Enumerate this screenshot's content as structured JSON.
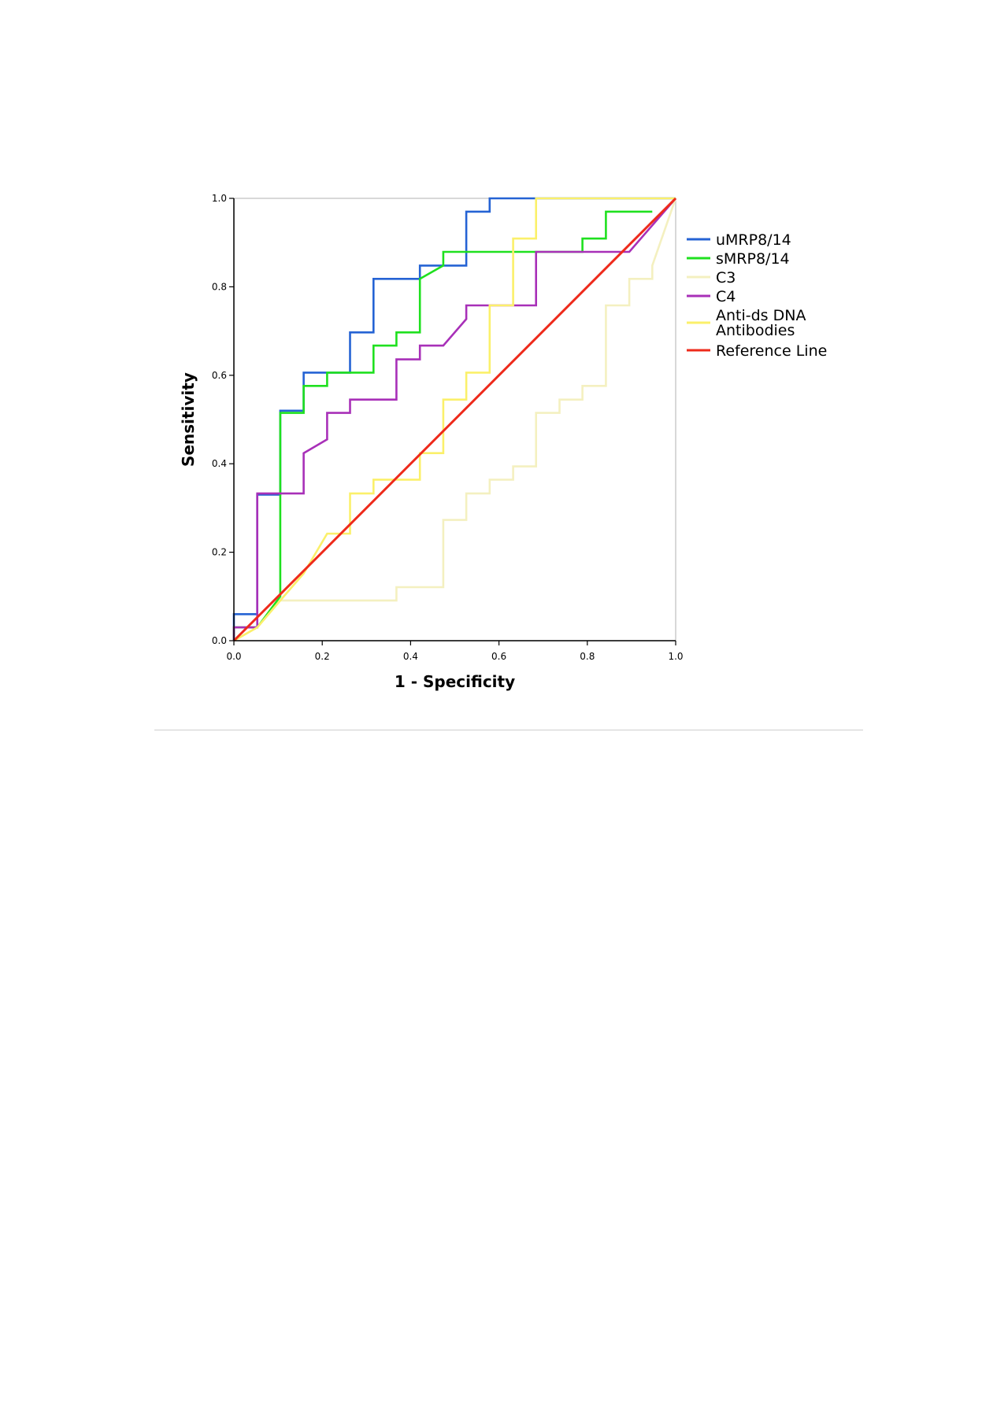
{
  "chart_data": {
    "type": "line",
    "title": "",
    "xlabel": "1 - Specificity",
    "ylabel": "Sensitivity",
    "xlim": [
      0,
      1
    ],
    "ylim": [
      0,
      1
    ],
    "x_ticks": [
      "0.0",
      "0.2",
      "0.4",
      "0.6",
      "0.8",
      "1.0"
    ],
    "y_ticks": [
      "0.0",
      "0.2",
      "0.4",
      "0.6",
      "0.8",
      "1.0"
    ],
    "grid": false,
    "legend_position": "right",
    "series": [
      {
        "name": "uMRP8/14",
        "color": "#2563d4",
        "step": true,
        "points": [
          [
            0.0,
            0.0
          ],
          [
            0.0,
            0.06
          ],
          [
            0.053,
            0.06
          ],
          [
            0.053,
            0.33
          ],
          [
            0.105,
            0.33
          ],
          [
            0.105,
            0.52
          ],
          [
            0.158,
            0.52
          ],
          [
            0.158,
            0.606
          ],
          [
            0.211,
            0.606
          ],
          [
            0.263,
            0.606
          ],
          [
            0.263,
            0.697
          ],
          [
            0.316,
            0.697
          ],
          [
            0.316,
            0.818
          ],
          [
            0.368,
            0.818
          ],
          [
            0.421,
            0.818
          ],
          [
            0.421,
            0.848
          ],
          [
            0.474,
            0.848
          ],
          [
            0.526,
            0.848
          ],
          [
            0.526,
            0.97
          ],
          [
            0.579,
            0.97
          ],
          [
            0.579,
            1.0
          ],
          [
            0.632,
            1.0
          ],
          [
            1.0,
            1.0
          ]
        ]
      },
      {
        "name": "sMRP8/14",
        "color": "#1fe01f",
        "step": true,
        "points": [
          [
            0.0,
            0.0
          ],
          [
            0.0,
            0.03
          ],
          [
            0.053,
            0.03
          ],
          [
            0.105,
            0.1
          ],
          [
            0.105,
            0.515
          ],
          [
            0.158,
            0.515
          ],
          [
            0.158,
            0.576
          ],
          [
            0.211,
            0.576
          ],
          [
            0.211,
            0.606
          ],
          [
            0.263,
            0.606
          ],
          [
            0.316,
            0.606
          ],
          [
            0.316,
            0.667
          ],
          [
            0.368,
            0.667
          ],
          [
            0.368,
            0.697
          ],
          [
            0.421,
            0.697
          ],
          [
            0.421,
            0.818
          ],
          [
            0.474,
            0.848
          ],
          [
            0.474,
            0.879
          ],
          [
            0.526,
            0.879
          ],
          [
            0.579,
            0.879
          ],
          [
            0.684,
            0.879
          ],
          [
            0.789,
            0.879
          ],
          [
            0.789,
            0.909
          ],
          [
            0.842,
            0.909
          ],
          [
            0.842,
            0.97
          ],
          [
            0.895,
            0.97
          ],
          [
            0.947,
            0.97
          ]
        ]
      },
      {
        "name": "C3",
        "color": "#f4f0c0",
        "step": true,
        "points": [
          [
            0.0,
            0.0
          ],
          [
            0.053,
            0.03
          ],
          [
            0.105,
            0.091
          ],
          [
            0.158,
            0.091
          ],
          [
            0.368,
            0.091
          ],
          [
            0.368,
            0.121
          ],
          [
            0.474,
            0.121
          ],
          [
            0.474,
            0.273
          ],
          [
            0.526,
            0.273
          ],
          [
            0.526,
            0.333
          ],
          [
            0.579,
            0.333
          ],
          [
            0.579,
            0.364
          ],
          [
            0.632,
            0.364
          ],
          [
            0.632,
            0.394
          ],
          [
            0.684,
            0.394
          ],
          [
            0.684,
            0.515
          ],
          [
            0.737,
            0.515
          ],
          [
            0.737,
            0.545
          ],
          [
            0.789,
            0.545
          ],
          [
            0.789,
            0.576
          ],
          [
            0.842,
            0.576
          ],
          [
            0.842,
            0.758
          ],
          [
            0.895,
            0.758
          ],
          [
            0.895,
            0.818
          ],
          [
            0.947,
            0.818
          ],
          [
            0.947,
            0.848
          ],
          [
            1.0,
            1.0
          ]
        ]
      },
      {
        "name": "C4",
        "color": "#a830b8",
        "step": true,
        "points": [
          [
            0.0,
            0.0
          ],
          [
            0.0,
            0.03
          ],
          [
            0.053,
            0.03
          ],
          [
            0.053,
            0.333
          ],
          [
            0.105,
            0.333
          ],
          [
            0.158,
            0.333
          ],
          [
            0.158,
            0.424
          ],
          [
            0.211,
            0.455
          ],
          [
            0.211,
            0.515
          ],
          [
            0.263,
            0.515
          ],
          [
            0.263,
            0.545
          ],
          [
            0.316,
            0.545
          ],
          [
            0.368,
            0.545
          ],
          [
            0.368,
            0.636
          ],
          [
            0.421,
            0.636
          ],
          [
            0.421,
            0.667
          ],
          [
            0.474,
            0.667
          ],
          [
            0.526,
            0.727
          ],
          [
            0.526,
            0.758
          ],
          [
            0.579,
            0.758
          ],
          [
            0.632,
            0.758
          ],
          [
            0.684,
            0.758
          ],
          [
            0.684,
            0.879
          ],
          [
            0.737,
            0.879
          ],
          [
            0.789,
            0.879
          ],
          [
            0.895,
            0.879
          ],
          [
            1.0,
            1.0
          ]
        ]
      },
      {
        "name": "Anti-ds DNA Antibodies",
        "color": "#fbf06a",
        "step": true,
        "points": [
          [
            0.0,
            0.0
          ],
          [
            0.053,
            0.03
          ],
          [
            0.105,
            0.091
          ],
          [
            0.158,
            0.152
          ],
          [
            0.211,
            0.242
          ],
          [
            0.263,
            0.242
          ],
          [
            0.263,
            0.333
          ],
          [
            0.316,
            0.333
          ],
          [
            0.316,
            0.364
          ],
          [
            0.368,
            0.364
          ],
          [
            0.421,
            0.364
          ],
          [
            0.421,
            0.424
          ],
          [
            0.474,
            0.424
          ],
          [
            0.474,
            0.545
          ],
          [
            0.526,
            0.545
          ],
          [
            0.526,
            0.606
          ],
          [
            0.579,
            0.606
          ],
          [
            0.579,
            0.758
          ],
          [
            0.632,
            0.758
          ],
          [
            0.632,
            0.909
          ],
          [
            0.684,
            0.909
          ],
          [
            0.684,
            1.0
          ],
          [
            0.737,
            1.0
          ],
          [
            1.0,
            1.0
          ]
        ]
      },
      {
        "name": "Reference Line",
        "color": "#ee2a1b",
        "step": false,
        "points": [
          [
            0.0,
            0.0
          ],
          [
            1.0,
            1.0
          ]
        ]
      }
    ]
  }
}
